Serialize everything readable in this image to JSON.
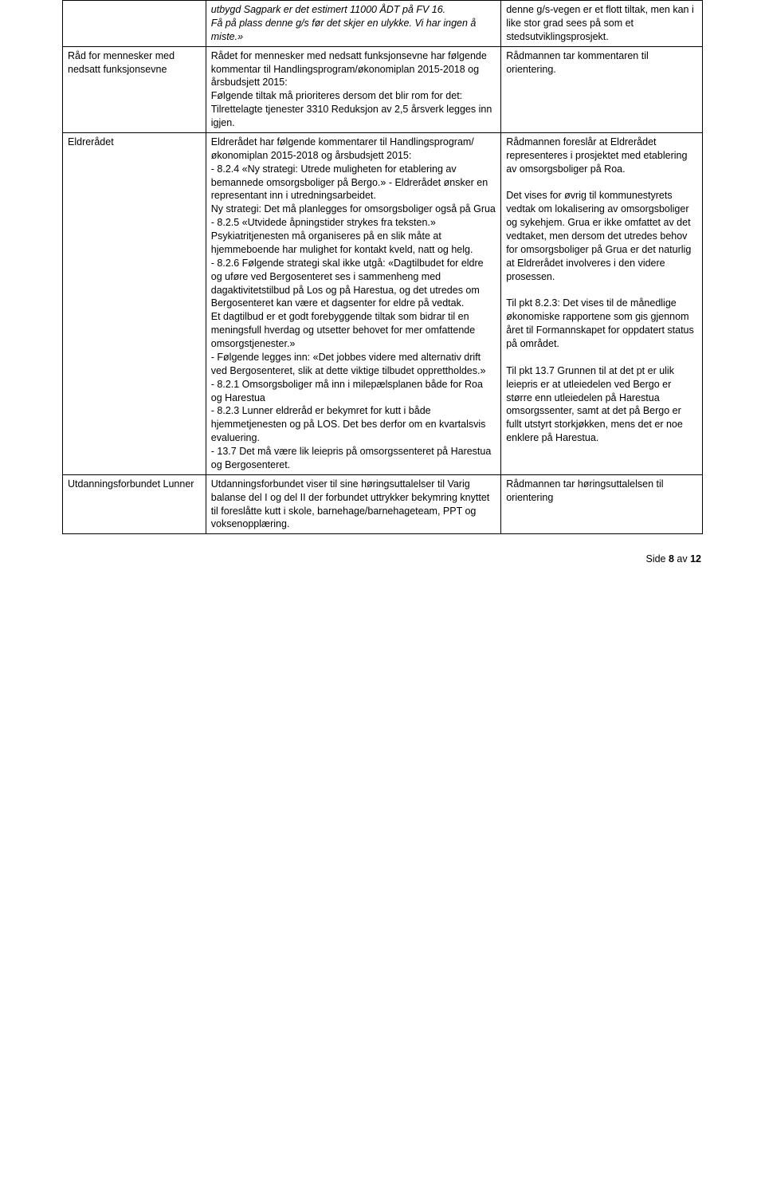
{
  "table": {
    "rows": [
      {
        "c1": "",
        "c2_italic": "utbygd Sagpark er det estimert 11000 ÅDT på FV 16.\nFå på plass denne g/s før det skjer en ulykke. Vi har ingen å miste.»",
        "c3": "denne g/s-vegen er et flott tiltak, men kan i like stor grad sees på som et stedsutviklingsprosjekt."
      },
      {
        "c1": "Råd for mennesker med nedsatt funksjonsevne",
        "c2": "Rådet for mennesker med nedsatt funksjonsevne har følgende kommentar til Handlingsprogram/økonomiplan 2015-2018 og årsbudsjett 2015:\nFølgende tiltak må prioriteres dersom det blir rom for det:\nTilrettelagte tjenester 3310 Reduksjon av 2,5 årsverk legges inn igjen.",
        "c3": "Rådmannen tar kommentaren til orientering."
      },
      {
        "c1": "Eldrerådet",
        "c2": "Eldrerådet har følgende kommentarer til Handlingsprogram/økonomiplan 2015-2018 og årsbudsjett 2015:\n- 8.2.4 «Ny strategi: Utrede muligheten for etablering av bemannede omsorgsboliger på Bergo.» - Eldrerådet ønsker en representant inn i utredningsarbeidet.\nNy strategi: Det må planlegges for omsorgsboliger også på Grua\n- 8.2.5 «Utvidede åpningstider strykes fra teksten.» Psykiatritjenesten må organiseres på en slik måte at hjemmeboende har mulighet for kontakt kveld, natt og helg.\n- 8.2.6 Følgende strategi skal ikke utgå: «Dagtilbudet for eldre og uføre ved Bergosenteret ses i sammenheng med dagaktivitetstilbud på Los og på Harestua, og det utredes om Bergosenteret kan være et dagsenter for eldre på vedtak.\nEt dagtilbud er et godt forebyggende tiltak som bidrar til en meningsfull hverdag og utsetter behovet for mer omfattende omsorgstjenester.»\n- Følgende legges inn: «Det jobbes videre med alternativ drift ved Bergosenteret, slik at dette viktige tilbudet opprettholdes.»\n- 8.2.1 Omsorgsboliger må inn i milepælsplanen både for Roa og Harestua\n- 8.2.3 Lunner eldreråd er bekymret for kutt i både hjemmetjenesten og på LOS. Det bes derfor om en kvartalsvis evaluering.\n- 13.7 Det må være lik leiepris på omsorgssenteret på Harestua og Bergosenteret.",
        "c3": "Rådmannen foreslår at Eldrerådet representeres i prosjektet med etablering av omsorgsboliger på Roa.\n\nDet vises for øvrig til kommunestyrets vedtak om lokalisering av omsorgsboliger og sykehjem. Grua er ikke omfattet av det vedtaket, men dersom det utredes behov for omsorgsboliger på Grua er det naturlig at Eldrerådet involveres i den videre prosessen.\n\nTil pkt 8.2.3: Det vises til de månedlige økonomiske rapportene som gis gjennom året til Formannskapet for oppdatert status på området.\n\nTil pkt 13.7 Grunnen til at det pt er ulik leiepris er at utleiedelen ved Bergo er større enn utleiedelen på Harestua omsorgssenter, samt at det på Bergo er fullt utstyrt storkjøkken, mens det er noe enklere på Harestua."
      },
      {
        "c1": "Utdanningsforbundet Lunner",
        "c2": "Utdanningsforbundet viser til sine høringsuttalelser til Varig balanse del I og del II der forbundet uttrykker bekymring knyttet til foreslåtte kutt i skole, barnehage/barnehageteam, PPT og voksenopplæring.",
        "c3": "Rådmannen tar høringsuttalelsen til orientering"
      }
    ]
  },
  "footer": {
    "prefix": "Side ",
    "num": "8",
    "mid": " av ",
    "total": "12"
  }
}
